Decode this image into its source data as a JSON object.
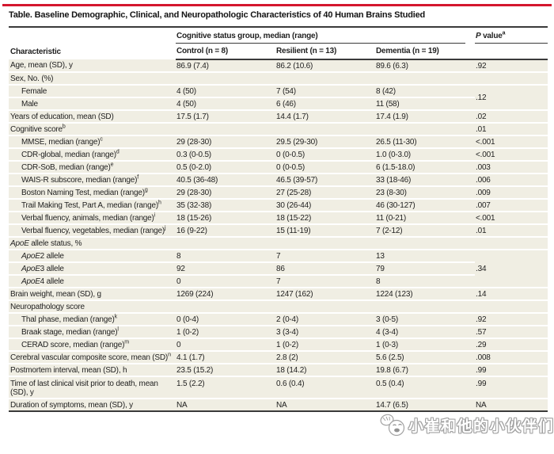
{
  "title": "Table. Baseline Demographic, Clinical, and Neuropathologic Characteristics of 40 Human Brains Studied",
  "colors": {
    "accent_red": "#D4162E",
    "row_beige": "#F0EEE3",
    "rule_dark": "#3A3A3A"
  },
  "header": {
    "characteristic": "Characteristic",
    "group": "Cognitive status group, median (range)",
    "p_italic": "P",
    "p_rest": " value",
    "p_sup": "a",
    "columns": [
      "Control (n = 8)",
      "Resilient (n = 13)",
      "Dementia (n = 19)"
    ]
  },
  "table": {
    "rows": [
      {
        "label": "Age, mean (SD), y",
        "indent": 0,
        "control": "86.9 (7.4)",
        "resilient": "86.2 (10.6)",
        "dementia": "89.6 (6.3)",
        "p": ".92"
      },
      {
        "label": "Sex, No. (%)",
        "indent": 0,
        "control": "",
        "resilient": "",
        "dementia": "",
        "p": ""
      },
      {
        "label": "Female",
        "indent": 1,
        "control": "4 (50)",
        "resilient": "7 (54)",
        "dementia": "8 (42)",
        "p": ".12",
        "p_rowspan": 2
      },
      {
        "label": "Male",
        "indent": 1,
        "control": "4 (50)",
        "resilient": "6 (46)",
        "dementia": "11 (58)",
        "p_skip": true
      },
      {
        "label": "Years of education, mean (SD)",
        "indent": 0,
        "control": "17.5 (1.7)",
        "resilient": "14.4 (1.7)",
        "dementia": "17.4 (1.9)",
        "p": ".02"
      },
      {
        "label": "Cognitive score",
        "sup": "b",
        "indent": 0,
        "control": "",
        "resilient": "",
        "dementia": "",
        "p": ".01"
      },
      {
        "label": "MMSE, median (range)",
        "sup": "c",
        "indent": 1,
        "control": "29 (28-30)",
        "resilient": "29.5 (29-30)",
        "dementia": "26.5 (11-30)",
        "p": "<.001"
      },
      {
        "label": "CDR-global, median (range)",
        "sup": "d",
        "indent": 1,
        "control": "0.3 (0-0.5)",
        "resilient": "0 (0-0.5)",
        "dementia": "1.0 (0-3.0)",
        "p": "<.001"
      },
      {
        "label": "CDR-SoB, median (range)",
        "sup": "e",
        "indent": 1,
        "control": "0.5 (0-2.0)",
        "resilient": "0 (0-0.5)",
        "dementia": "6 (1.5-18.0)",
        "p": ".003"
      },
      {
        "label": "WAIS-R subscore, median (range)",
        "sup": "f",
        "indent": 1,
        "control": "40.5 (36-48)",
        "resilient": "46.5 (39-57)",
        "dementia": "33 (18-46)",
        "p": ".006"
      },
      {
        "label": "Boston Naming Test, median (range)",
        "sup": "g",
        "indent": 1,
        "control": "29 (28-30)",
        "resilient": "27 (25-28)",
        "dementia": "23 (8-30)",
        "p": ".009"
      },
      {
        "label": "Trail Making Test, Part A, median (range)",
        "sup": "h",
        "indent": 1,
        "control": "35 (32-38)",
        "resilient": "30 (26-44)",
        "dementia": "46 (30-127)",
        "p": ".007"
      },
      {
        "label": "Verbal fluency, animals, median (range)",
        "sup": "i",
        "indent": 1,
        "control": "18 (15-26)",
        "resilient": "18 (15-22)",
        "dementia": "11 (0-21)",
        "p": "<.001"
      },
      {
        "label": "Verbal fluency, vegetables, median (range)",
        "sup": "j",
        "indent": 1,
        "control": "16 (9-22)",
        "resilient": "15 (11-19)",
        "dementia": "7 (2-12)",
        "p": ".01"
      },
      {
        "italic": "ApoE",
        "label": " allele status, %",
        "indent": 0,
        "control": "",
        "resilient": "",
        "dementia": "",
        "p": ""
      },
      {
        "italic": "ApoE",
        "label": "2 allele",
        "indent": 1,
        "control": "8",
        "resilient": "7",
        "dementia": "13",
        "p": ".34",
        "p_rowspan": 3
      },
      {
        "italic": "ApoE",
        "label": "3 allele",
        "indent": 1,
        "control": "92",
        "resilient": "86",
        "dementia": "79",
        "p_skip": true
      },
      {
        "italic": "ApoE",
        "label": "4 allele",
        "indent": 1,
        "control": "0",
        "resilient": "7",
        "dementia": "8",
        "p_skip": true
      },
      {
        "label": "Brain weight, mean (SD), g",
        "indent": 0,
        "control": "1269 (224)",
        "resilient": "1247 (162)",
        "dementia": "1224 (123)",
        "p": ".14"
      },
      {
        "label": "Neuropathology score",
        "indent": 0,
        "control": "",
        "resilient": "",
        "dementia": "",
        "p": ""
      },
      {
        "label": "Thal phase, median (range)",
        "sup": "k",
        "indent": 1,
        "control": "0 (0-4)",
        "resilient": "2 (0-4)",
        "dementia": "3 (0-5)",
        "p": ".92"
      },
      {
        "label": "Braak stage, median (range)",
        "sup": "l",
        "indent": 1,
        "control": "1 (0-2)",
        "resilient": "3 (3-4)",
        "dementia": "4 (3-4)",
        "p": ".57"
      },
      {
        "label": "CERAD score, median (range)",
        "sup": "m",
        "indent": 1,
        "control": "0",
        "resilient": "1 (0-2)",
        "dementia": "1 (0-3)",
        "p": ".29"
      },
      {
        "label": "Cerebral vascular composite score, mean (SD)",
        "sup": "n",
        "indent": 0,
        "control": "4.1 (1.7)",
        "resilient": "2.8 (2)",
        "dementia": "5.6 (2.5)",
        "p": ".008"
      },
      {
        "label": "Postmortem interval, mean (SD), h",
        "indent": 0,
        "control": "23.5 (15.2)",
        "resilient": "18 (14.2)",
        "dementia": "19.8 (6.7)",
        "p": ".99"
      },
      {
        "label": "Time of last clinical visit prior to death, mean (SD), y",
        "indent": 0,
        "control": "1.5 (2.2)",
        "resilient": "0.6 (0.4)",
        "dementia": "0.5 (0.4)",
        "p": ".99"
      },
      {
        "label": "Duration of symptoms, mean (SD), y",
        "indent": 0,
        "control": "NA",
        "resilient": "NA",
        "dementia": "14.7 (6.5)",
        "p": "NA"
      }
    ]
  },
  "watermark": {
    "text": "小崔和他的小伙伴们",
    "icon": "chick-mascot"
  }
}
